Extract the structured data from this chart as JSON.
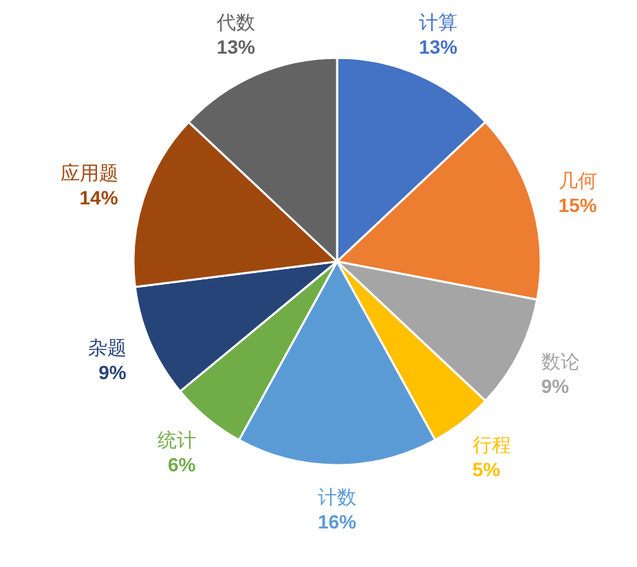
{
  "chart_data": {
    "type": "pie",
    "categories": [
      "计算",
      "几何",
      "数论",
      "行程",
      "计数",
      "统计",
      "杂题",
      "应用题",
      "代数"
    ],
    "values": [
      13,
      15,
      9,
      5,
      16,
      6,
      9,
      14,
      13
    ],
    "value_labels": [
      "13%",
      "15%",
      "9%",
      "5%",
      "16%",
      "6%",
      "9%",
      "14%",
      "13%"
    ],
    "colors": [
      "#4472c4",
      "#ed7d31",
      "#a5a5a5",
      "#ffc000",
      "#5b9bd5",
      "#70ad47",
      "#264478",
      "#9e480e",
      "#636363"
    ]
  }
}
